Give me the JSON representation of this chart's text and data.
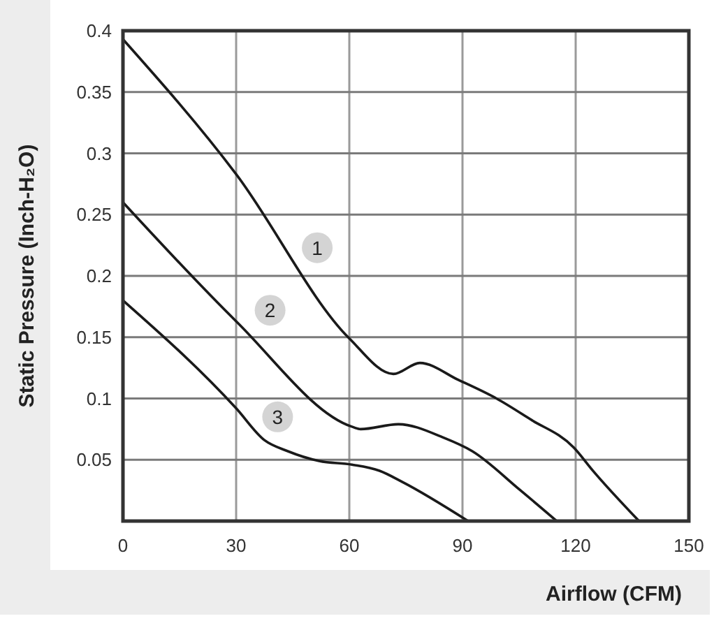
{
  "chart_data": {
    "type": "line",
    "xlabel": "Airflow (CFM)",
    "ylabel": "Static Pressure (Inch-H₂O)",
    "xlim": [
      0,
      150
    ],
    "ylim": [
      0,
      0.4
    ],
    "xticks": [
      0,
      30,
      60,
      90,
      120,
      150
    ],
    "yticks": [
      0.05,
      0.1,
      0.15,
      0.2,
      0.25,
      0.3,
      0.35,
      0.4
    ],
    "grid": true,
    "series": [
      {
        "color": "#1a1a1a",
        "x": [
          0,
          30,
          60,
          71.7,
          78.7,
          89,
          99,
          108,
          119.5,
          124.6,
          136.8
        ],
        "values": [
          0.393,
          0.283,
          0.149,
          0.12,
          0.129,
          0.115,
          0.1,
          0.083,
          0.06,
          0.041,
          0
        ]
      },
      {
        "color": "#1a1a1a",
        "x": [
          0,
          30,
          60.7,
          63,
          73,
          85,
          92.6,
          105,
          115
        ],
        "values": [
          0.26,
          0.163,
          0.077,
          0.075,
          0.079,
          0.068,
          0.057,
          0.026,
          0
        ]
      },
      {
        "color": "#1a1a1a",
        "x": [
          0,
          30,
          37.5,
          43.7,
          52,
          60.7,
          68,
          74,
          91.5
        ],
        "values": [
          0.18,
          0.092,
          0.066,
          0.057,
          0.049,
          0.046,
          0.041,
          0.032,
          0
        ]
      }
    ],
    "annotations": [
      {
        "text": "1",
        "x": 51.5,
        "y": 0.223
      },
      {
        "text": "2",
        "x": 39,
        "y": 0.172
      },
      {
        "text": "3",
        "x": 41,
        "y": 0.085
      }
    ]
  }
}
